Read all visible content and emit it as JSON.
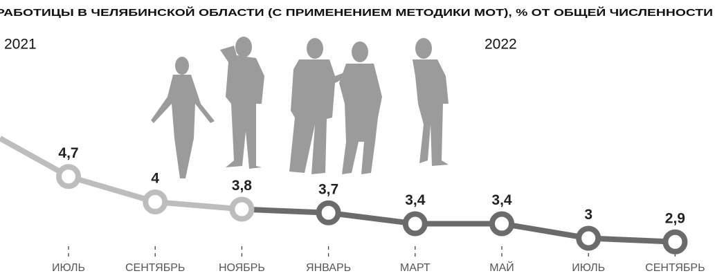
{
  "chart_data": {
    "type": "line",
    "title": "РАБОТИЦЫ В ЧЕЛЯБИНСКОЙ ОБЛАСТИ (С ПРИМЕНЕНИЕМ МЕТОДИКИ МОТ), % ОТ ОБЩЕЙ ЧИСЛЕННОСТИ",
    "categories": [
      "ИЮЛЬ",
      "СЕНТЯБРЬ",
      "НОЯБРЬ",
      "ЯНВАРЬ",
      "МАРТ",
      "МАЙ",
      "ИЮЛЬ",
      "СЕНТЯБРЬ"
    ],
    "series": [
      {
        "name": "2021",
        "color": "#bdbdbd",
        "values": [
          4.7,
          4,
          3.8,
          null,
          null,
          null,
          null,
          null
        ],
        "value_labels": [
          "4,7",
          "4",
          "3,8",
          null,
          null,
          null,
          null,
          null
        ]
      },
      {
        "name": "2022",
        "color": "#6b6b6b",
        "values": [
          null,
          null,
          null,
          3.7,
          3.4,
          3.4,
          3,
          2.9
        ],
        "value_labels": [
          null,
          null,
          null,
          "3,7",
          "3,4",
          "3,4",
          "3",
          "2,9"
        ]
      }
    ]
  }
}
